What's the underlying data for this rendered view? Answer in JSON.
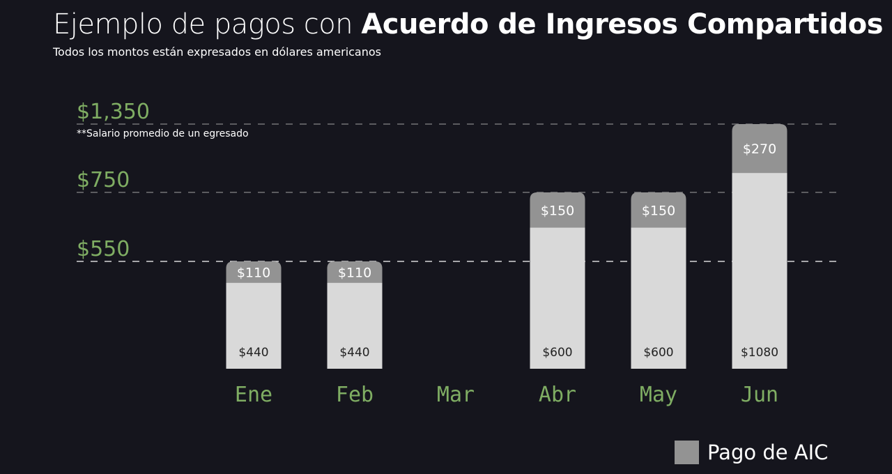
{
  "title_regular": "Ejemplo de pagos con ",
  "title_bold": "Acuerdo de Ingresos Compartidos",
  "subtitle": "Todos los montos están expresados en dólares americanos",
  "chart_data": {
    "type": "bar",
    "stacked": true,
    "categories": [
      "Ene",
      "Feb",
      "Mar",
      "Abr",
      "May",
      "Jun"
    ],
    "series": [
      {
        "values": [
          440,
          440,
          null,
          600,
          600,
          1080
        ],
        "labels": [
          "$440",
          "$440",
          "",
          "$600",
          "$600",
          "$1080"
        ],
        "color": "#d9d9d9"
      },
      {
        "name": "Pago de AIC",
        "values": [
          110,
          110,
          null,
          150,
          150,
          270
        ],
        "labels": [
          "$110",
          "$110",
          "",
          "$150",
          "$150",
          "$270"
        ],
        "color": "#939393"
      }
    ],
    "reference_lines": [
      {
        "value": 1350,
        "label": "$1,350",
        "note": "**Salario promedio de un egresado",
        "color": "#888888"
      },
      {
        "value": 750,
        "label": "$750",
        "color": "#888888"
      },
      {
        "value": 550,
        "label": "$550",
        "color": "#ffffff"
      }
    ],
    "label_color": "#7fad63",
    "legend": "bottom-right",
    "grid": false
  }
}
